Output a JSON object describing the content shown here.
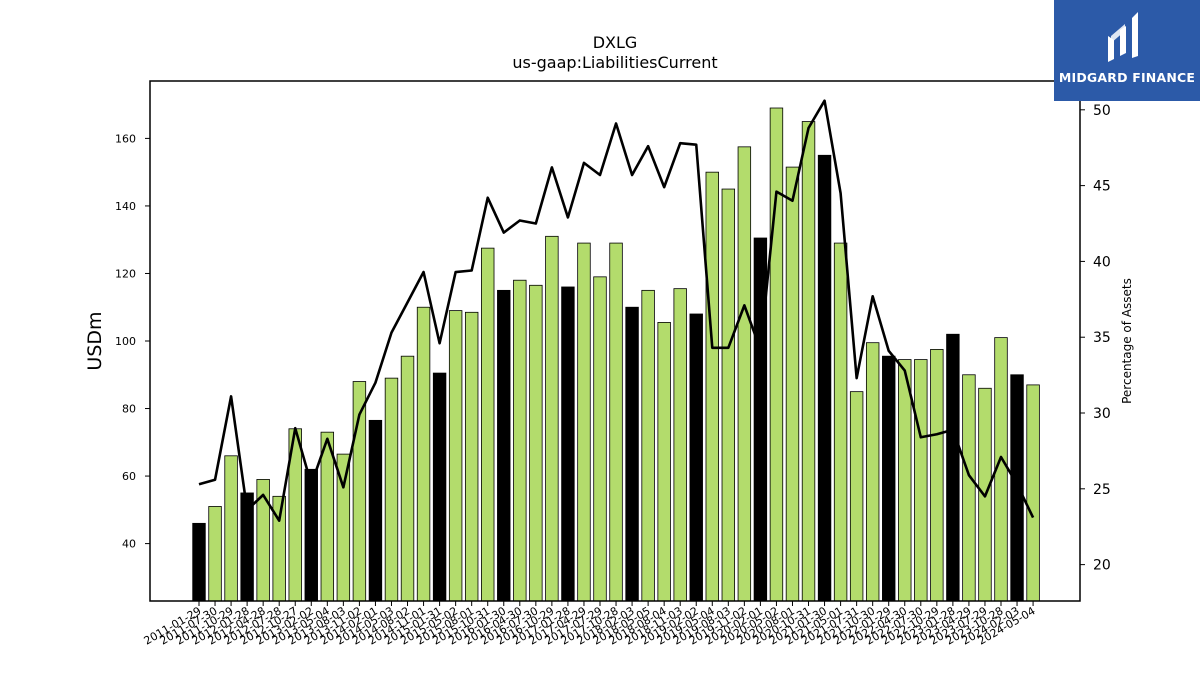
{
  "chart_data": {
    "type": "bar",
    "title": "DXLG",
    "subtitle": "us-gaap:LiabilitiesCurrent",
    "ylabel": "USDm",
    "y2label": "Percentage of Assets",
    "ylim": [
      23,
      177
    ],
    "y2lim": [
      17.6,
      51.9
    ],
    "yticks": [
      40,
      60,
      80,
      100,
      120,
      140,
      160
    ],
    "y2ticks": [
      20,
      25,
      30,
      35,
      40,
      45,
      50
    ],
    "grid": false,
    "categories": [
      "2011-01-29",
      "2011-07-30",
      "2011-10-29",
      "2012-01-28",
      "2012-04-28",
      "2012-07-28",
      "2012-10-27",
      "2013-02-02",
      "2013-05-04",
      "2013-08-03",
      "2013-11-02",
      "2014-02-01",
      "2014-05-03",
      "2014-08-02",
      "2014-11-01",
      "2015-01-31",
      "2015-05-02",
      "2015-08-01",
      "2015-10-31",
      "2016-01-30",
      "2016-04-30",
      "2016-07-30",
      "2016-10-29",
      "2017-01-28",
      "2017-04-29",
      "2017-07-29",
      "2017-10-28",
      "2018-02-03",
      "2018-05-05",
      "2018-08-04",
      "2018-11-03",
      "2019-02-02",
      "2019-05-04",
      "2019-08-03",
      "2019-11-02",
      "2020-02-01",
      "2020-05-02",
      "2020-08-01",
      "2020-10-31",
      "2021-01-30",
      "2021-05-01",
      "2021-07-31",
      "2021-10-30",
      "2022-01-29",
      "2022-04-30",
      "2022-07-30",
      "2022-10-29",
      "2023-01-28",
      "2023-04-29",
      "2023-07-29",
      "2023-10-28",
      "2024-02-03",
      "2024-05-04"
    ],
    "series": [
      {
        "kind": "bar",
        "values": [
          46,
          51,
          66,
          55,
          59,
          54,
          74,
          62,
          73,
          66.5,
          88,
          76.5,
          89,
          95.5,
          110,
          90.5,
          109,
          108.5,
          127.5,
          115,
          118,
          116.5,
          131,
          116,
          129,
          119,
          129,
          110,
          115,
          105.5,
          115.5,
          108,
          150,
          145,
          157.5,
          130.5,
          169,
          151.5,
          165,
          155,
          129,
          85,
          99.5,
          95.5,
          94.5,
          94.5,
          97.5,
          102,
          90,
          86,
          101,
          90,
          87
        ],
        "highlight": [
          true,
          false,
          false,
          true,
          false,
          false,
          false,
          true,
          false,
          false,
          false,
          true,
          false,
          false,
          false,
          true,
          false,
          false,
          false,
          true,
          false,
          false,
          false,
          true,
          false,
          false,
          false,
          true,
          false,
          false,
          false,
          true,
          false,
          false,
          false,
          true,
          false,
          false,
          false,
          true,
          false,
          false,
          false,
          true,
          false,
          false,
          false,
          true,
          false,
          false,
          false,
          true,
          false
        ]
      },
      {
        "kind": "line",
        "axis": "right",
        "values": [
          25.3,
          25.6,
          31.1,
          23.6,
          24.6,
          22.9,
          29.0,
          25.3,
          28.3,
          25.1,
          29.9,
          32.0,
          35.3,
          37.3,
          39.3,
          34.6,
          39.3,
          39.4,
          44.2,
          41.9,
          42.7,
          42.5,
          46.2,
          42.9,
          46.5,
          45.7,
          49.1,
          45.7,
          47.6,
          44.9,
          47.8,
          47.7,
          34.3,
          34.3,
          37.1,
          34.2,
          44.6,
          44.0,
          48.8,
          50.6,
          44.5,
          32.3,
          37.7,
          34.1,
          32.8,
          28.4,
          28.6,
          28.9,
          25.9,
          24.5,
          27.1,
          25.3,
          23.1
        ]
      }
    ],
    "colors": {
      "bar": "#b3dc6c",
      "bar_highlight": "#000000",
      "line": "#000000",
      "axis": "#000000"
    }
  },
  "logo": {
    "text": "MIDGARD FINANCE",
    "icon": "midgard-m-logo-icon",
    "bg_color": "#2c5aa8"
  }
}
